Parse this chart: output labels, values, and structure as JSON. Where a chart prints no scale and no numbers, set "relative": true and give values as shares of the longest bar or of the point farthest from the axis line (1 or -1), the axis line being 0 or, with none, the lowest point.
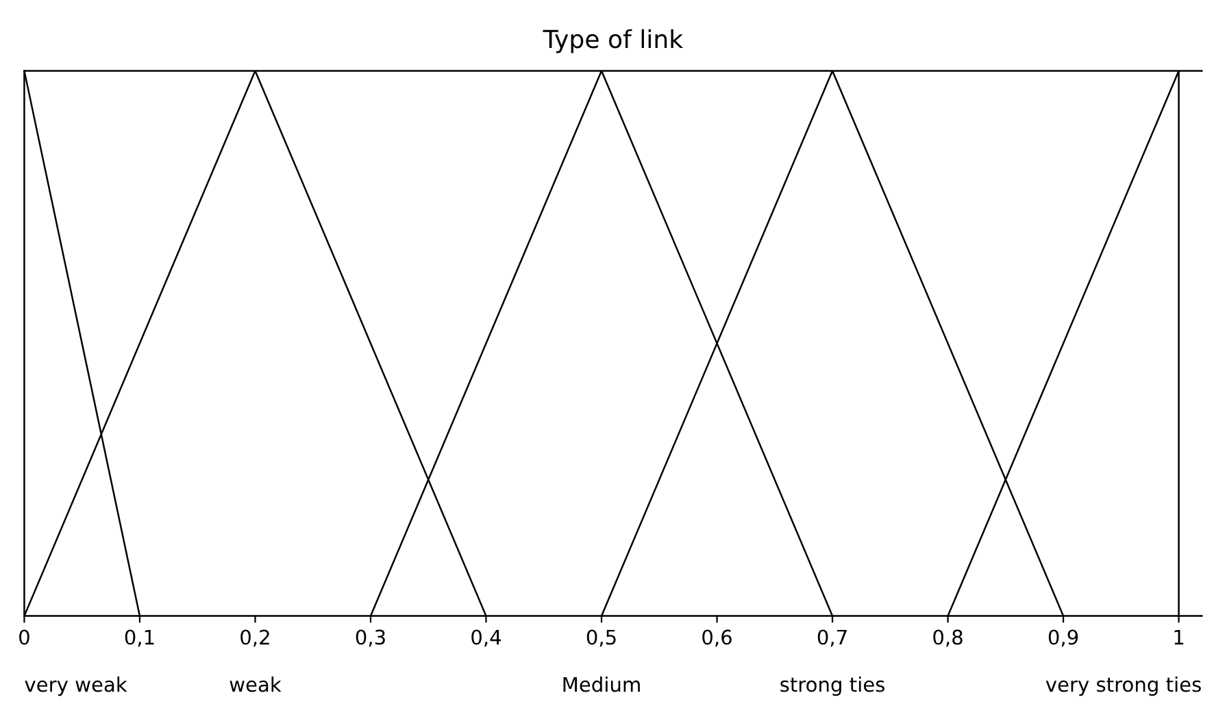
{
  "chart_data": {
    "type": "line",
    "title": "Type of link",
    "relative": true,
    "xlim": [
      0,
      1.02
    ],
    "xticks": [
      0,
      {
        "value": 0.1,
        "label": "0,1"
      },
      {
        "value": 0.2,
        "label": "0,2"
      },
      {
        "value": 0.3,
        "label": "0,3"
      },
      {
        "value": 0.4,
        "label": "0,4"
      },
      {
        "value": 0.5,
        "label": "0,5"
      },
      {
        "value": 0.6,
        "label": "0,6"
      },
      {
        "value": 0.7,
        "label": "0,7"
      },
      {
        "value": 0.8,
        "label": "0,8"
      },
      {
        "value": 0.9,
        "label": "0,9"
      },
      1
    ],
    "annotations": [
      "very weak",
      "weak",
      "Medium",
      "strong ties",
      "very strong ties"
    ],
    "tick_labels": "x",
    "grid": false,
    "legend": false,
    "marker": "none",
    "line_style": "solid",
    "series": [
      {
        "color": "#000000",
        "x": [
          0,
          0.1
        ],
        "values": [
          1,
          0
        ]
      },
      {
        "color": "#000000",
        "x": [
          0,
          0.2,
          0.4
        ],
        "values": [
          0,
          1,
          0
        ]
      },
      {
        "color": "#000000",
        "x": [
          0.3,
          0.5,
          0.7
        ],
        "values": [
          0,
          1,
          0
        ]
      },
      {
        "color": "#000000",
        "x": [
          0.5,
          0.7,
          0.9
        ],
        "values": [
          0,
          1,
          0
        ]
      },
      {
        "color": "#000000",
        "x": [
          0.8,
          1,
          1
        ],
        "values": [
          0,
          1,
          0
        ]
      }
    ]
  }
}
